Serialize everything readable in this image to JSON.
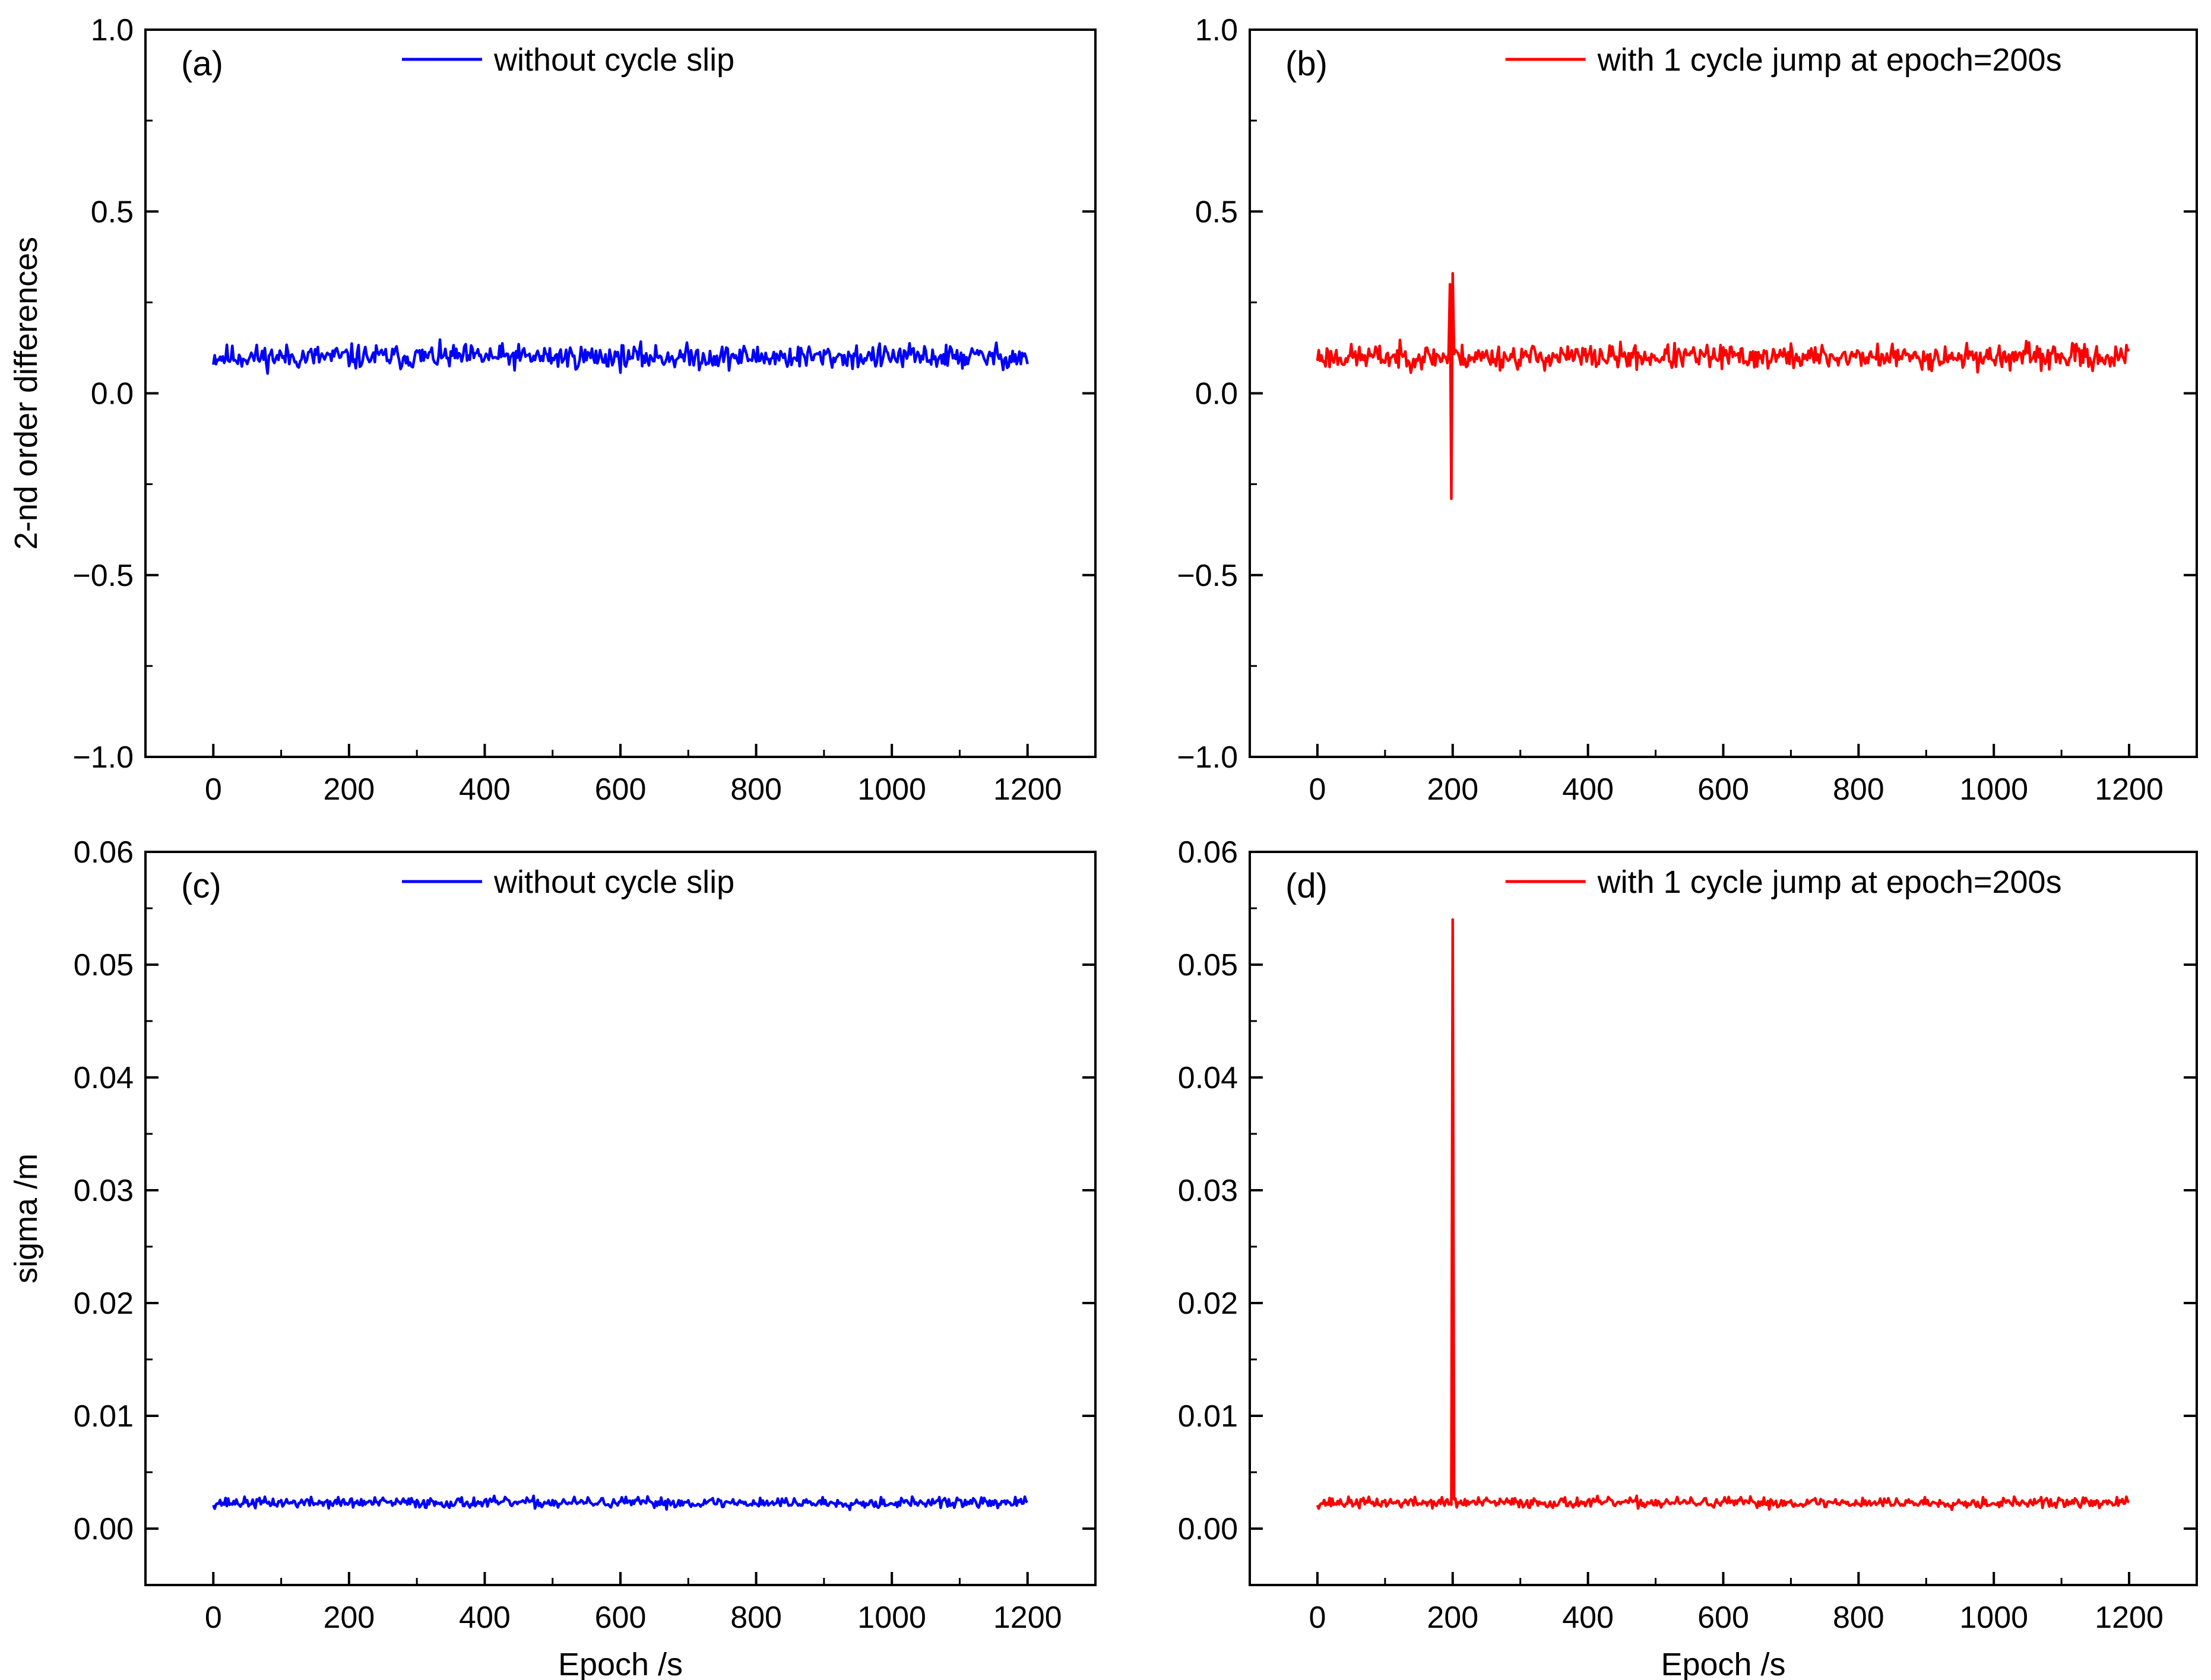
{
  "chart_data": [
    {
      "id": "a",
      "type": "line",
      "panel_label": "(a)",
      "ylabel": "2-nd order differences",
      "xlabel": "",
      "xlim": [
        -100,
        1300
      ],
      "ylim": [
        -1.0,
        1.0
      ],
      "xticks": [
        0,
        200,
        400,
        600,
        800,
        1000,
        1200
      ],
      "xtick_labels": [
        "0",
        "200",
        "400",
        "600",
        "800",
        "1000",
        "1200"
      ],
      "yticks": [
        -1.0,
        -0.5,
        0.0,
        0.5,
        1.0
      ],
      "ytick_labels": [
        "−1.0",
        "−0.5",
        "0.0",
        "0.5",
        "1.0"
      ],
      "legend_position": "top-center",
      "series": [
        {
          "name": "without cycle slip",
          "color": "#0000ff",
          "noise": {
            "x_start": 0,
            "x_end": 1200,
            "step": 2,
            "mean": 0.1,
            "amplitude": 0.05,
            "seed": 11
          },
          "spikes": []
        }
      ]
    },
    {
      "id": "b",
      "type": "line",
      "panel_label": "(b)",
      "ylabel": "",
      "xlabel": "",
      "xlim": [
        -100,
        1300
      ],
      "ylim": [
        -1.0,
        1.0
      ],
      "xticks": [
        0,
        200,
        400,
        600,
        800,
        1000,
        1200
      ],
      "xtick_labels": [
        "0",
        "200",
        "400",
        "600",
        "800",
        "1000",
        "1200"
      ],
      "yticks": [
        -1.0,
        -0.5,
        0.0,
        0.5,
        1.0
      ],
      "ytick_labels": [
        "−1.0",
        "−0.5",
        "0.0",
        "0.5",
        "1.0"
      ],
      "legend_position": "top-center",
      "series": [
        {
          "name": "with 1 cycle jump at epoch=200s",
          "color": "#ff0000",
          "noise": {
            "x_start": 0,
            "x_end": 1200,
            "step": 2,
            "mean": 0.1,
            "amplitude": 0.05,
            "seed": 23
          },
          "spikes": [
            {
              "x": 196,
              "y": 0.3
            },
            {
              "x": 198,
              "y": -0.29
            },
            {
              "x": 200,
              "y": 0.33
            }
          ]
        }
      ]
    },
    {
      "id": "c",
      "type": "line",
      "panel_label": "(c)",
      "ylabel": "sigma /m",
      "xlabel": "Epoch /s",
      "xlim": [
        -100,
        1300
      ],
      "ylim": [
        -0.005,
        0.06
      ],
      "xticks": [
        0,
        200,
        400,
        600,
        800,
        1000,
        1200
      ],
      "xtick_labels": [
        "0",
        "200",
        "400",
        "600",
        "800",
        "1000",
        "1200"
      ],
      "yticks": [
        0.0,
        0.01,
        0.02,
        0.03,
        0.04,
        0.05,
        0.06
      ],
      "ytick_labels": [
        "0.00",
        "0.01",
        "0.02",
        "0.03",
        "0.04",
        "0.05",
        "0.06"
      ],
      "legend_position": "top-center",
      "series": [
        {
          "name": "without cycle slip",
          "color": "#0000ff",
          "noise": {
            "x_start": 0,
            "x_end": 1200,
            "step": 2,
            "mean": 0.0023,
            "amplitude": 0.0007,
            "seed": 37
          },
          "spikes": []
        }
      ]
    },
    {
      "id": "d",
      "type": "line",
      "panel_label": "(d)",
      "ylabel": "",
      "xlabel": "Epoch /s",
      "xlim": [
        -100,
        1300
      ],
      "ylim": [
        -0.005,
        0.06
      ],
      "xticks": [
        0,
        200,
        400,
        600,
        800,
        1000,
        1200
      ],
      "xtick_labels": [
        "0",
        "200",
        "400",
        "600",
        "800",
        "1000",
        "1200"
      ],
      "yticks": [
        0.0,
        0.01,
        0.02,
        0.03,
        0.04,
        0.05,
        0.06
      ],
      "ytick_labels": [
        "0.00",
        "0.01",
        "0.02",
        "0.03",
        "0.04",
        "0.05",
        "0.06"
      ],
      "legend_position": "top-center",
      "series": [
        {
          "name": "with 1 cycle jump at epoch=200s",
          "color": "#ff0000",
          "noise": {
            "x_start": 0,
            "x_end": 1200,
            "step": 2,
            "mean": 0.0023,
            "amplitude": 0.0007,
            "seed": 37
          },
          "spikes": [
            {
              "x": 200,
              "y": 0.054
            }
          ]
        }
      ]
    }
  ]
}
